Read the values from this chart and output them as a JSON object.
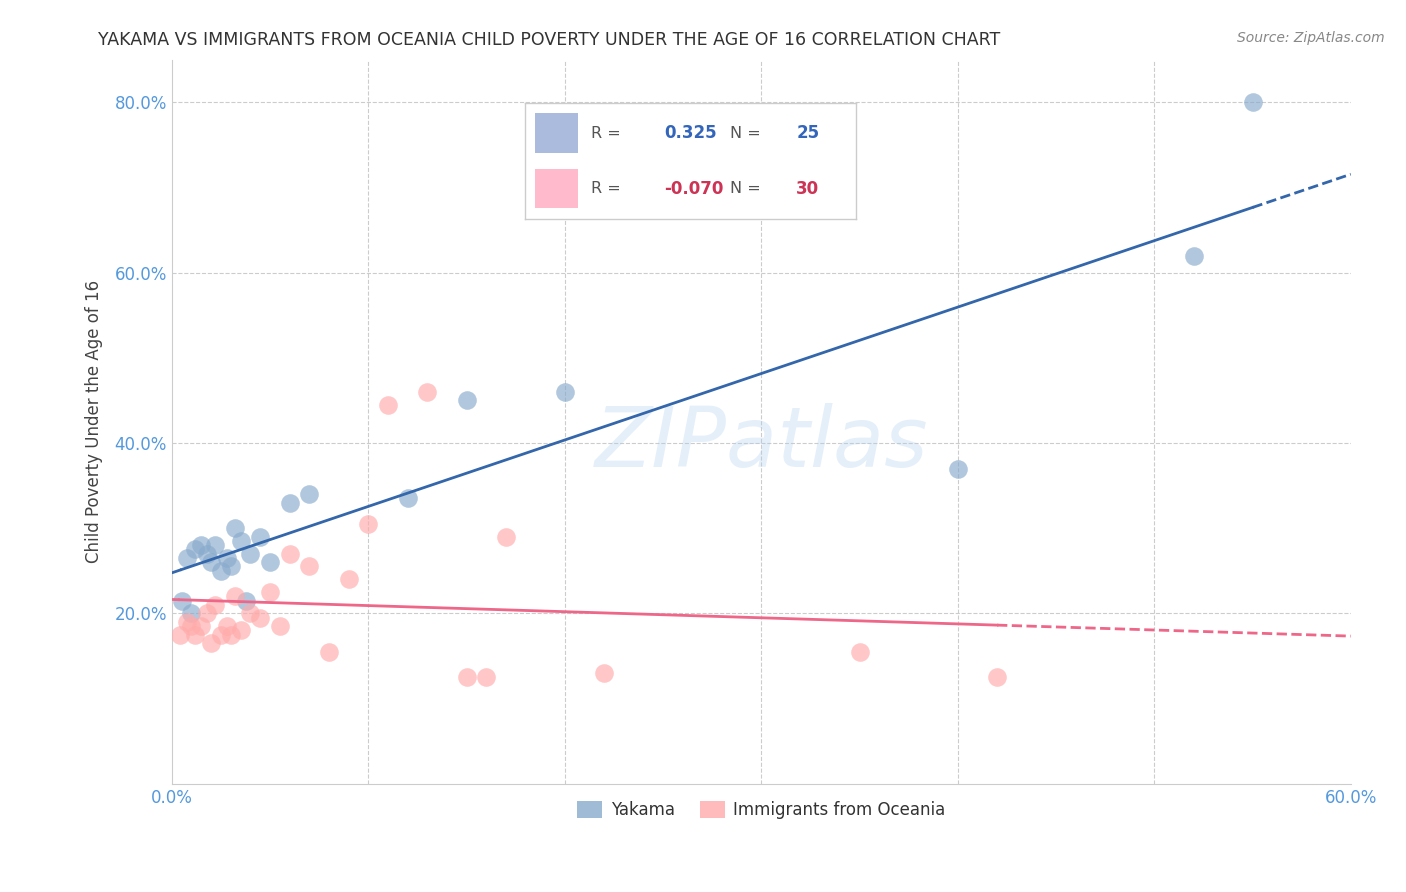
{
  "title": "YAKAMA VS IMMIGRANTS FROM OCEANIA CHILD POVERTY UNDER THE AGE OF 16 CORRELATION CHART",
  "source": "Source: ZipAtlas.com",
  "ylabel": "Child Poverty Under the Age of 16",
  "watermark": "ZIPatlas",
  "xlim": [
    0.0,
    0.6
  ],
  "ylim": [
    0.0,
    0.85
  ],
  "xticks": [
    0.0,
    0.1,
    0.2,
    0.3,
    0.4,
    0.5,
    0.6
  ],
  "yticks": [
    0.0,
    0.2,
    0.4,
    0.6,
    0.8
  ],
  "xticklabels": [
    "0.0%",
    "",
    "",
    "",
    "",
    "",
    "60.0%"
  ],
  "yticklabels": [
    "",
    "20.0%",
    "40.0%",
    "60.0%",
    "80.0%"
  ],
  "legend_labels": [
    "Yakama",
    "Immigrants from Oceania"
  ],
  "R_yakama": 0.325,
  "N_yakama": 25,
  "R_oceania": -0.07,
  "N_oceania": 30,
  "yakama_color": "#88AACC",
  "oceania_color": "#FFAAAA",
  "trendline_yakama_color": "#3366AA",
  "trendline_oceania_color": "#EE6688",
  "background_color": "#FFFFFF",
  "grid_color": "#CCCCCC",
  "title_color": "#333333",
  "axis_color": "#5599DD",
  "legend_box_color_yakama": "#AABBDD",
  "legend_box_color_oceania": "#FFBBCC",
  "yakama_x": [
    0.005,
    0.008,
    0.01,
    0.012,
    0.015,
    0.018,
    0.02,
    0.022,
    0.025,
    0.028,
    0.03,
    0.032,
    0.035,
    0.038,
    0.04,
    0.045,
    0.05,
    0.06,
    0.07,
    0.12,
    0.15,
    0.2,
    0.4,
    0.52,
    0.55
  ],
  "yakama_y": [
    0.215,
    0.265,
    0.2,
    0.275,
    0.28,
    0.27,
    0.26,
    0.28,
    0.25,
    0.265,
    0.255,
    0.3,
    0.285,
    0.215,
    0.27,
    0.29,
    0.26,
    0.33,
    0.34,
    0.335,
    0.45,
    0.46,
    0.37,
    0.62,
    0.8
  ],
  "oceania_x": [
    0.004,
    0.008,
    0.01,
    0.012,
    0.015,
    0.018,
    0.02,
    0.022,
    0.025,
    0.028,
    0.03,
    0.032,
    0.035,
    0.04,
    0.045,
    0.05,
    0.055,
    0.06,
    0.07,
    0.08,
    0.09,
    0.1,
    0.11,
    0.13,
    0.15,
    0.16,
    0.17,
    0.22,
    0.35,
    0.42
  ],
  "oceania_y": [
    0.175,
    0.19,
    0.185,
    0.175,
    0.185,
    0.2,
    0.165,
    0.21,
    0.175,
    0.185,
    0.175,
    0.22,
    0.18,
    0.2,
    0.195,
    0.225,
    0.185,
    0.27,
    0.255,
    0.155,
    0.24,
    0.305,
    0.445,
    0.46,
    0.125,
    0.125,
    0.29,
    0.13,
    0.155,
    0.125
  ],
  "trendline_yakama_x0": 0.0,
  "trendline_yakama_x1": 0.6,
  "trendline_oceania_x0": 0.0,
  "trendline_oceania_x1": 0.6
}
